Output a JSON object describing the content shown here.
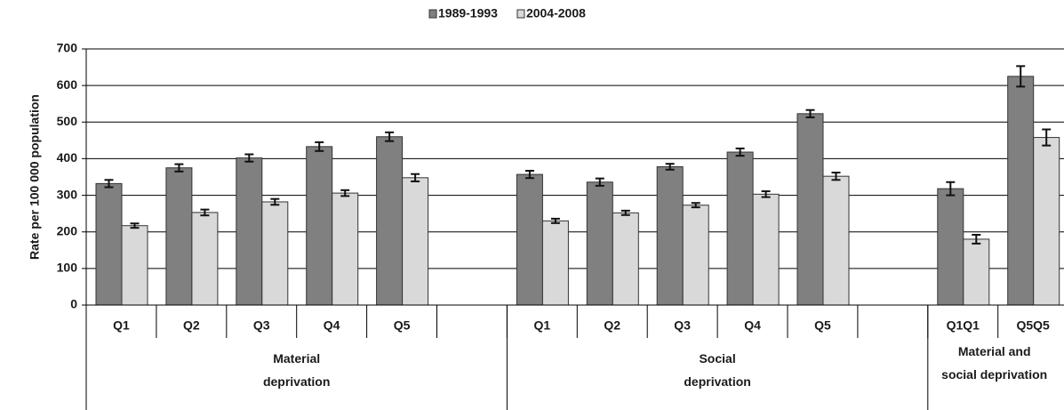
{
  "chart_data": {
    "type": "bar",
    "y_label": "Rate per 100 000 population",
    "categories": [
      "Q1",
      "Q2",
      "Q3",
      "Q4",
      "Q5",
      null,
      "Q1",
      "Q2",
      "Q3",
      "Q4",
      "Q5",
      null,
      "Q1Q1",
      "Q5Q5"
    ],
    "groups": [
      {
        "label": "Material deprivation",
        "start": 0,
        "end": 5
      },
      {
        "label": "Social deprivation",
        "start": 6,
        "end": 11
      },
      {
        "label": "Material and social deprivation",
        "start": 12,
        "end": 13
      }
    ],
    "series": [
      {
        "name": "1989-1993",
        "color": "#808080",
        "values": [
          332,
          375,
          402,
          433,
          460,
          null,
          357,
          336,
          378,
          418,
          523,
          null,
          318,
          625
        ],
        "errors": [
          10,
          10,
          10,
          12,
          12,
          null,
          10,
          10,
          8,
          10,
          10,
          null,
          18,
          28
        ]
      },
      {
        "name": "2004-2008",
        "color": "#d9d9d9",
        "values": [
          217,
          253,
          282,
          306,
          348,
          null,
          230,
          252,
          273,
          303,
          352,
          null,
          180,
          458
        ],
        "errors": [
          6,
          8,
          8,
          8,
          10,
          null,
          6,
          6,
          6,
          8,
          10,
          null,
          12,
          22
        ]
      }
    ],
    "ylim": [
      0,
      700
    ],
    "yticks": [
      0,
      100,
      200,
      300,
      400,
      500,
      600,
      700
    ],
    "grid": true,
    "legend": "top"
  }
}
